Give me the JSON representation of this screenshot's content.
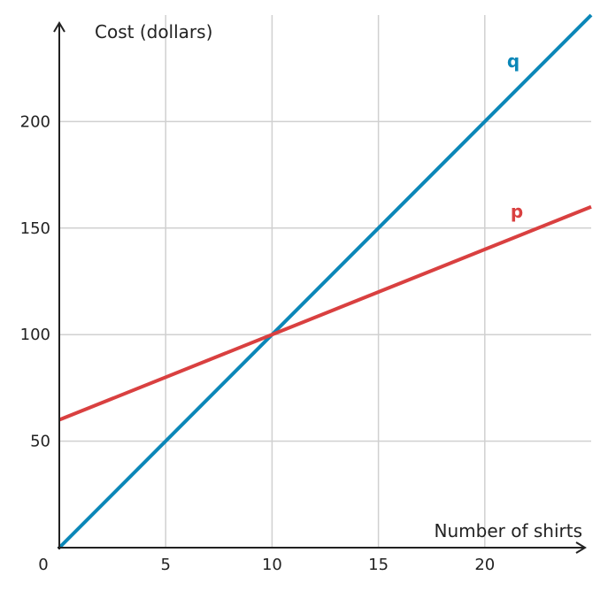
{
  "chart_data": {
    "type": "line",
    "xlabel": "Number of shirts",
    "ylabel": "Cost (dollars)",
    "xlim": [
      0,
      25
    ],
    "ylim": [
      0,
      250
    ],
    "x_ticks": [
      5,
      10,
      15,
      20
    ],
    "y_ticks": [
      50,
      100,
      150,
      200
    ],
    "origin_label": "0",
    "grid": true,
    "series": [
      {
        "name": "q",
        "color": "#0b87b8",
        "x": [
          0,
          25
        ],
        "y": [
          0,
          250
        ]
      },
      {
        "name": "p",
        "color": "#d94040",
        "x": [
          0,
          25
        ],
        "y": [
          60,
          160
        ]
      }
    ]
  }
}
